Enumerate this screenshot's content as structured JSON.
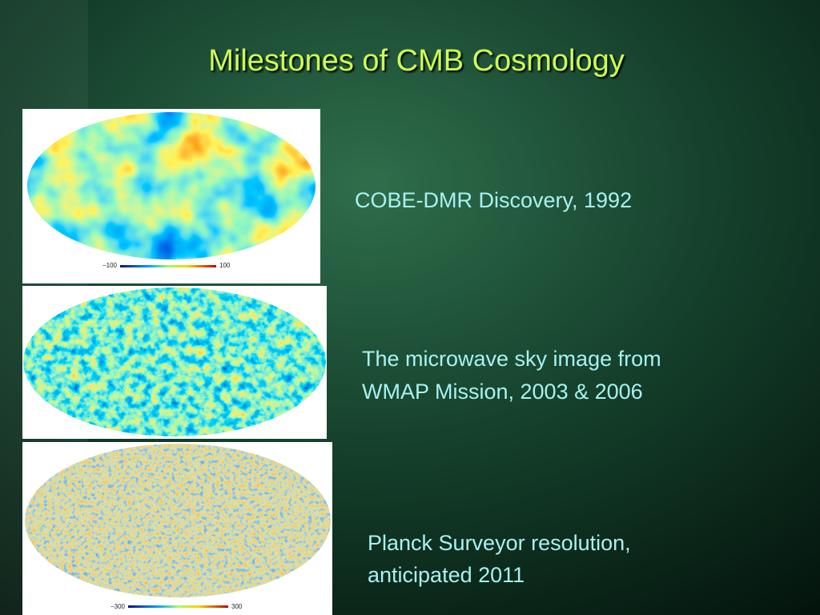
{
  "slide": {
    "title": "Milestones of CMB Cosmology",
    "items": [
      {
        "caption": [
          "COBE-DMR Discovery, 1992"
        ],
        "scale_labels": [
          "−100",
          "100"
        ]
      },
      {
        "caption": [
          "The microwave sky image from",
          "WMAP Mission, 2003 & 2006"
        ]
      },
      {
        "caption": [
          "Planck Surveyor resolution,",
          "anticipated 2011"
        ],
        "scale_labels": [
          "−300",
          "300"
        ]
      }
    ]
  }
}
